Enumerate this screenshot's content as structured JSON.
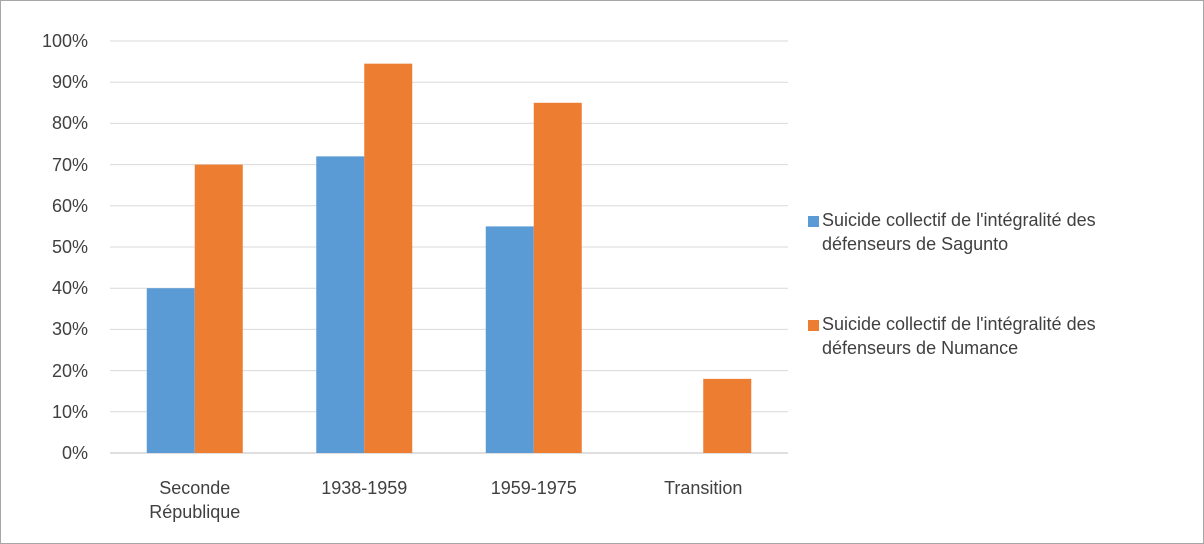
{
  "chart_data": {
    "type": "bar",
    "categories": [
      "Seconde République",
      "1938-1959",
      "1959-1975",
      "Transition"
    ],
    "series": [
      {
        "name": "Suicide collectif de l'intégralité des défenseurs de Sagunto",
        "color": "#5b9bd5",
        "values": [
          40,
          72,
          55,
          0
        ]
      },
      {
        "name": "Suicide collectif de l'intégralité des défenseurs de Numance",
        "color": "#ed7d31",
        "values": [
          70,
          94.5,
          85,
          18
        ]
      }
    ],
    "ylim": [
      0,
      100
    ],
    "yticks": [
      {
        "value": 0,
        "label": "0%"
      },
      {
        "value": 10,
        "label": "10%"
      },
      {
        "value": 20,
        "label": "20%"
      },
      {
        "value": 30,
        "label": "30%"
      },
      {
        "value": 40,
        "label": "40%"
      },
      {
        "value": 50,
        "label": "50%"
      },
      {
        "value": 60,
        "label": "60%"
      },
      {
        "value": 70,
        "label": "70%"
      },
      {
        "value": 80,
        "label": "80%"
      },
      {
        "value": 90,
        "label": "90%"
      },
      {
        "value": 100,
        "label": "100%"
      }
    ],
    "grid": true,
    "legend": "right"
  }
}
